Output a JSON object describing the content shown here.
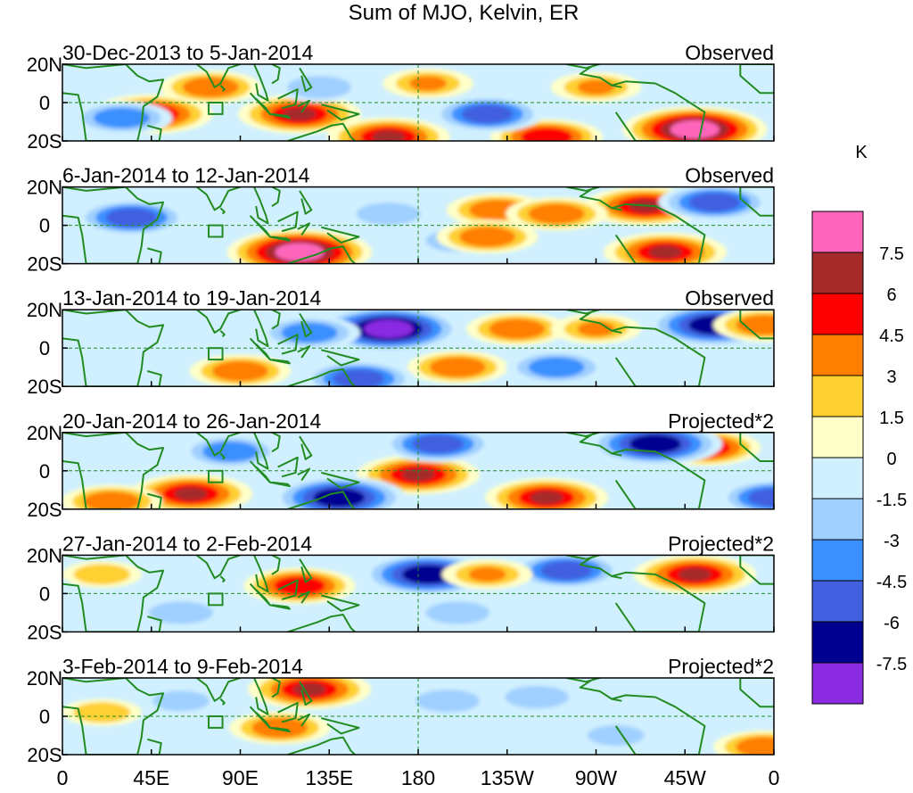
{
  "chart_data": {
    "type": "heatmap",
    "title": "Sum of MJO, Kelvin, ER",
    "units": "K",
    "x_ticks": [
      "0",
      "45E",
      "90E",
      "135E",
      "180",
      "135W",
      "90W",
      "45W",
      "0"
    ],
    "x_tick_lon": [
      0,
      45,
      90,
      135,
      180,
      225,
      270,
      315,
      360
    ],
    "y_ticks": [
      "20N",
      "0",
      "20S"
    ],
    "y_tick_lat": [
      20,
      0,
      -20
    ],
    "lon_range": [
      0,
      360
    ],
    "lat_range": [
      -20,
      20
    ],
    "reference_lines": {
      "equator_lat": 0,
      "dateline_lon": 180
    },
    "box_region": {
      "lon_range": [
        74,
        81
      ],
      "lat_range": [
        -6,
        0
      ]
    },
    "colorbar": {
      "levels": [
        "7.5",
        "6",
        "4.5",
        "3",
        "1.5",
        "0",
        "-1.5",
        "-3",
        "-4.5",
        "-6",
        "-7.5"
      ],
      "colors": [
        "#ff66bb",
        "#a52a2a",
        "#ff0000",
        "#ff7f00",
        "#ffd030",
        "#ffffc8",
        "#d0f0ff",
        "#a0d0ff",
        "#3a90ff",
        "#4060e0",
        "#000090",
        "#8a2be2"
      ]
    },
    "panels": [
      {
        "period": "30-Dec-2013 to 5-Jan-2014",
        "type": "Observed",
        "features": [
          {
            "lon": 45,
            "lat": -6,
            "value": 6
          },
          {
            "lon": 75,
            "lat": 8,
            "value": 4
          },
          {
            "lon": 120,
            "lat": -6,
            "value": 6
          },
          {
            "lon": 165,
            "lat": -18,
            "value": 6
          },
          {
            "lon": 245,
            "lat": -18,
            "value": 5
          },
          {
            "lon": 320,
            "lat": -14,
            "value": 8
          },
          {
            "lon": 215,
            "lat": -6,
            "value": -5
          },
          {
            "lon": 30,
            "lat": -8,
            "value": -4
          },
          {
            "lon": 130,
            "lat": 8,
            "value": -3
          },
          {
            "lon": 185,
            "lat": 10,
            "value": 3
          },
          {
            "lon": 270,
            "lat": 8,
            "value": 3
          }
        ]
      },
      {
        "period": "6-Jan-2014 to 12-Jan-2014",
        "type": "Observed",
        "features": [
          {
            "lon": 120,
            "lat": -14,
            "value": 8
          },
          {
            "lon": 295,
            "lat": 10,
            "value": 6
          },
          {
            "lon": 305,
            "lat": -14,
            "value": 6
          },
          {
            "lon": 220,
            "lat": 8,
            "value": 4
          },
          {
            "lon": 250,
            "lat": 6,
            "value": 4
          },
          {
            "lon": 35,
            "lat": 4,
            "value": -5
          },
          {
            "lon": 330,
            "lat": 12,
            "value": -5
          },
          {
            "lon": 165,
            "lat": 6,
            "value": -3
          },
          {
            "lon": 200,
            "lat": -8,
            "value": -3
          },
          {
            "lon": 215,
            "lat": -6,
            "value": 4
          }
        ]
      },
      {
        "period": "13-Jan-2014 to 19-Jan-2014",
        "type": "Observed",
        "features": [
          {
            "lon": 165,
            "lat": 10,
            "value": -8
          },
          {
            "lon": 330,
            "lat": 12,
            "value": -7
          },
          {
            "lon": 125,
            "lat": 8,
            "value": -4
          },
          {
            "lon": 90,
            "lat": -12,
            "value": 4
          },
          {
            "lon": 200,
            "lat": -10,
            "value": 4
          },
          {
            "lon": 230,
            "lat": 10,
            "value": 4
          },
          {
            "lon": 270,
            "lat": 10,
            "value": 3
          },
          {
            "lon": 355,
            "lat": 12,
            "value": 4
          },
          {
            "lon": 150,
            "lat": -16,
            "value": -5
          },
          {
            "lon": 250,
            "lat": -10,
            "value": -4
          }
        ]
      },
      {
        "period": "20-Jan-2014 to 26-Jan-2014",
        "type": "Projected*2",
        "features": [
          {
            "lon": 65,
            "lat": -12,
            "value": 6
          },
          {
            "lon": 180,
            "lat": -2,
            "value": 6
          },
          {
            "lon": 245,
            "lat": -14,
            "value": 6
          },
          {
            "lon": 325,
            "lat": 12,
            "value": 5
          },
          {
            "lon": 140,
            "lat": -14,
            "value": -7
          },
          {
            "lon": 300,
            "lat": 14,
            "value": -7
          },
          {
            "lon": 190,
            "lat": 14,
            "value": -5
          },
          {
            "lon": 85,
            "lat": 10,
            "value": -4
          },
          {
            "lon": 360,
            "lat": -14,
            "value": -5
          },
          {
            "lon": 25,
            "lat": -16,
            "value": 4
          }
        ]
      },
      {
        "period": "27-Jan-2014 to 2-Feb-2014",
        "type": "Projected*2",
        "features": [
          {
            "lon": 120,
            "lat": 4,
            "value": 5
          },
          {
            "lon": 320,
            "lat": 10,
            "value": 6
          },
          {
            "lon": 185,
            "lat": 10,
            "value": -7
          },
          {
            "lon": 255,
            "lat": 12,
            "value": -5
          },
          {
            "lon": 215,
            "lat": 10,
            "value": 3
          },
          {
            "lon": 60,
            "lat": -10,
            "value": -3
          },
          {
            "lon": 20,
            "lat": 10,
            "value": 2
          },
          {
            "lon": 200,
            "lat": -10,
            "value": -3
          }
        ]
      },
      {
        "period": "3-Feb-2014 to 9-Feb-2014",
        "type": "Projected*2",
        "features": [
          {
            "lon": 125,
            "lat": 14,
            "value": 6
          },
          {
            "lon": 110,
            "lat": -6,
            "value": 4
          },
          {
            "lon": 20,
            "lat": 2,
            "value": 2
          },
          {
            "lon": 195,
            "lat": 8,
            "value": -3
          },
          {
            "lon": 240,
            "lat": 10,
            "value": -3
          },
          {
            "lon": 355,
            "lat": -16,
            "value": 4
          },
          {
            "lon": 280,
            "lat": -10,
            "value": -2
          },
          {
            "lon": 60,
            "lat": 8,
            "value": -2
          }
        ]
      }
    ]
  }
}
